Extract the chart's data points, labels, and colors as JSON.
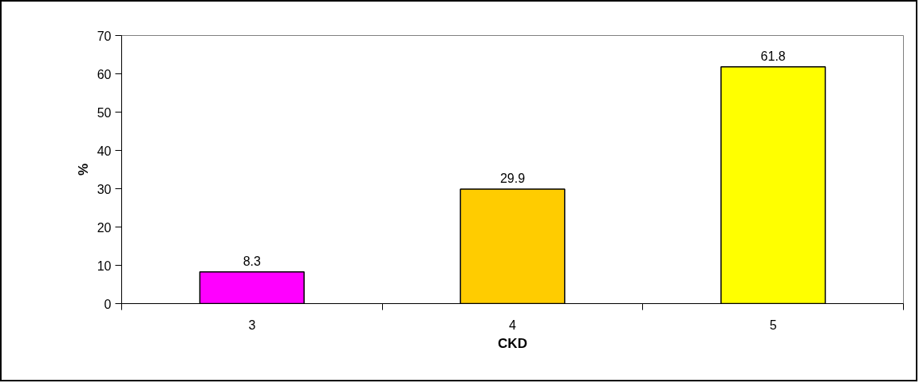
{
  "chart_data": {
    "type": "bar",
    "xlabel": "CKD",
    "ylabel": "%",
    "categories": [
      "3",
      "4",
      "5"
    ],
    "values": [
      8.3,
      29.9,
      61.8
    ],
    "colors": [
      "#ff00ff",
      "#ffcc00",
      "#ffff00"
    ],
    "ylim": [
      0,
      70
    ],
    "yticks": [
      0,
      10,
      20,
      30,
      40,
      50,
      60,
      70
    ],
    "data_labels": true,
    "grid": false
  }
}
